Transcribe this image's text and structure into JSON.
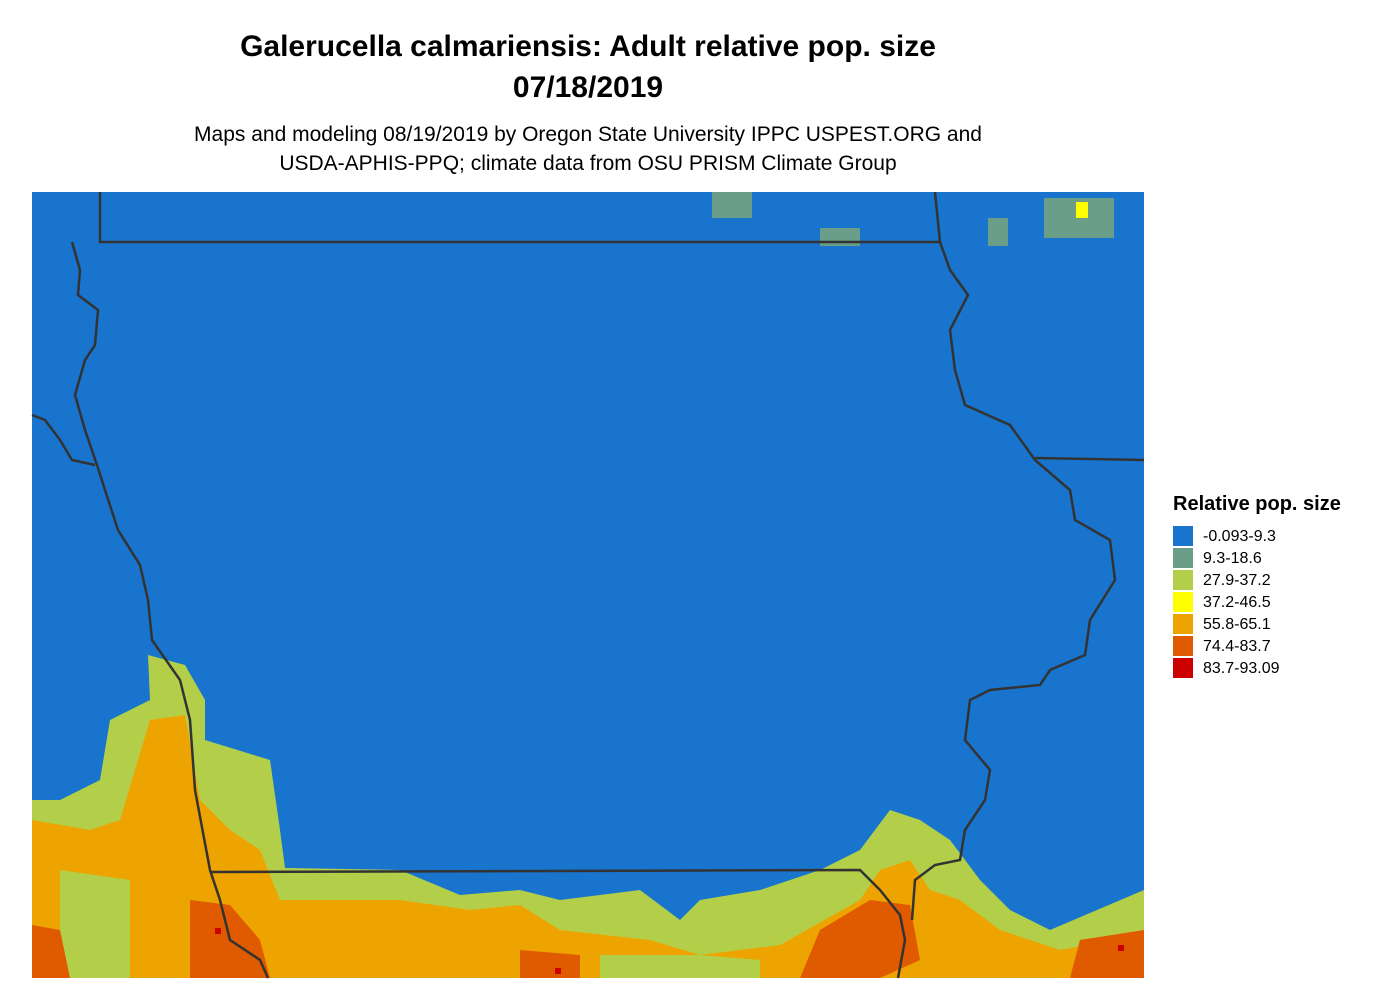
{
  "header": {
    "title": "Galerucella calmariensis: Adult relative pop. size",
    "date": "07/18/2019",
    "subtitle": [
      "Maps and modeling 08/19/2019 by Oregon State University IPPC USPEST.ORG and",
      "USDA-APHIS-PPQ; climate data from OSU PRISM Climate Group"
    ]
  },
  "legend": {
    "title": "Relative pop. size",
    "items": [
      {
        "label": "-0.093-9.3",
        "color": "#1874cd"
      },
      {
        "label": "9.3-18.6",
        "color": "#6a9e88"
      },
      {
        "label": "27.9-37.2",
        "color": "#b3cf4a"
      },
      {
        "label": "37.2-46.5",
        "color": "#ffff00"
      },
      {
        "label": "55.8-65.1",
        "color": "#eea400"
      },
      {
        "label": "74.4-83.7",
        "color": "#e05a00"
      },
      {
        "label": "83.7-93.09",
        "color": "#cd0000"
      }
    ]
  }
}
